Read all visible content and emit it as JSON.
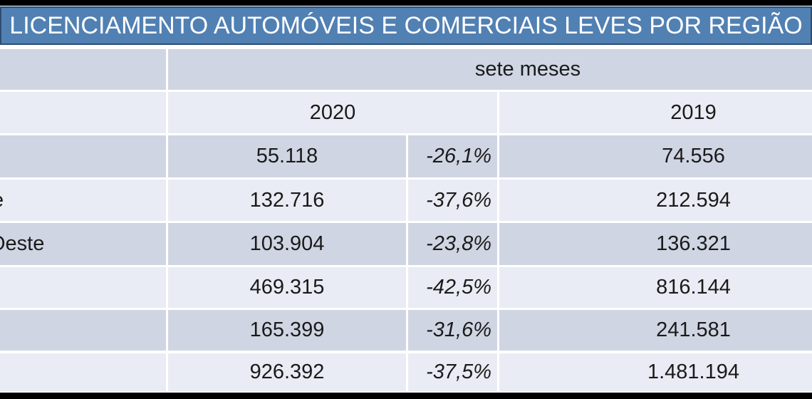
{
  "title": "LICENCIAMENTO AUTOMÓVEIS E COMERCIAIS LEVES POR REGIÃO",
  "table": {
    "period_label": "sete meses",
    "year_left": "2020",
    "year_right": "2019",
    "rows": [
      {
        "region_fragment": "",
        "value_2020": "55.118",
        "variation_pct": "-26,1%",
        "value_2019": "74.556"
      },
      {
        "region_fragment": "e",
        "value_2020": "132.716",
        "variation_pct": "-37,6%",
        "value_2019": "212.594"
      },
      {
        "region_fragment": "Oeste",
        "value_2020": "103.904",
        "variation_pct": "-23,8%",
        "value_2019": "136.321"
      },
      {
        "region_fragment": "",
        "value_2020": "469.315",
        "variation_pct": "-42,5%",
        "value_2019": "816.144"
      },
      {
        "region_fragment": "",
        "value_2020": "165.399",
        "variation_pct": "-31,6%",
        "value_2019": "241.581"
      },
      {
        "region_fragment": "",
        "value_2020": "926.392",
        "variation_pct": "-37,5%",
        "value_2019": "1.481.194"
      }
    ]
  },
  "colors": {
    "title_bg": "#5180B3",
    "title_border": "#2E4D71",
    "row_band_dark": "#D0D5E3",
    "row_band_light": "#E9ECF4",
    "frame_bar": "#000000",
    "text": "#1A1A1A",
    "title_text": "#FFFFFF"
  },
  "chart_data": {
    "type": "table",
    "title": "LICENCIAMENTO AUTOMÓVEIS E COMERCIAIS LEVES POR REGIÃO",
    "column_group_label": "sete meses",
    "columns": [
      "region",
      "2020",
      "pct_change",
      "2019"
    ],
    "rows": [
      [
        "",
        "55.118",
        "-26,1%",
        "74.556"
      ],
      [
        "e",
        "132.716",
        "-37,6%",
        "212.594"
      ],
      [
        "Oeste",
        "103.904",
        "-23,8%",
        "136.321"
      ],
      [
        "",
        "469.315",
        "-42,5%",
        "816.144"
      ],
      [
        "",
        "165.399",
        "-31,6%",
        "241.581"
      ],
      [
        "",
        "926.392",
        "-37,5%",
        "1.481.194"
      ]
    ],
    "layout": {
      "banded_rows": true,
      "pct_column_style": "italic-right-aligned",
      "region_column": "clipped-offscreen-left",
      "year_2019_column": "clipped-offscreen-right"
    }
  }
}
